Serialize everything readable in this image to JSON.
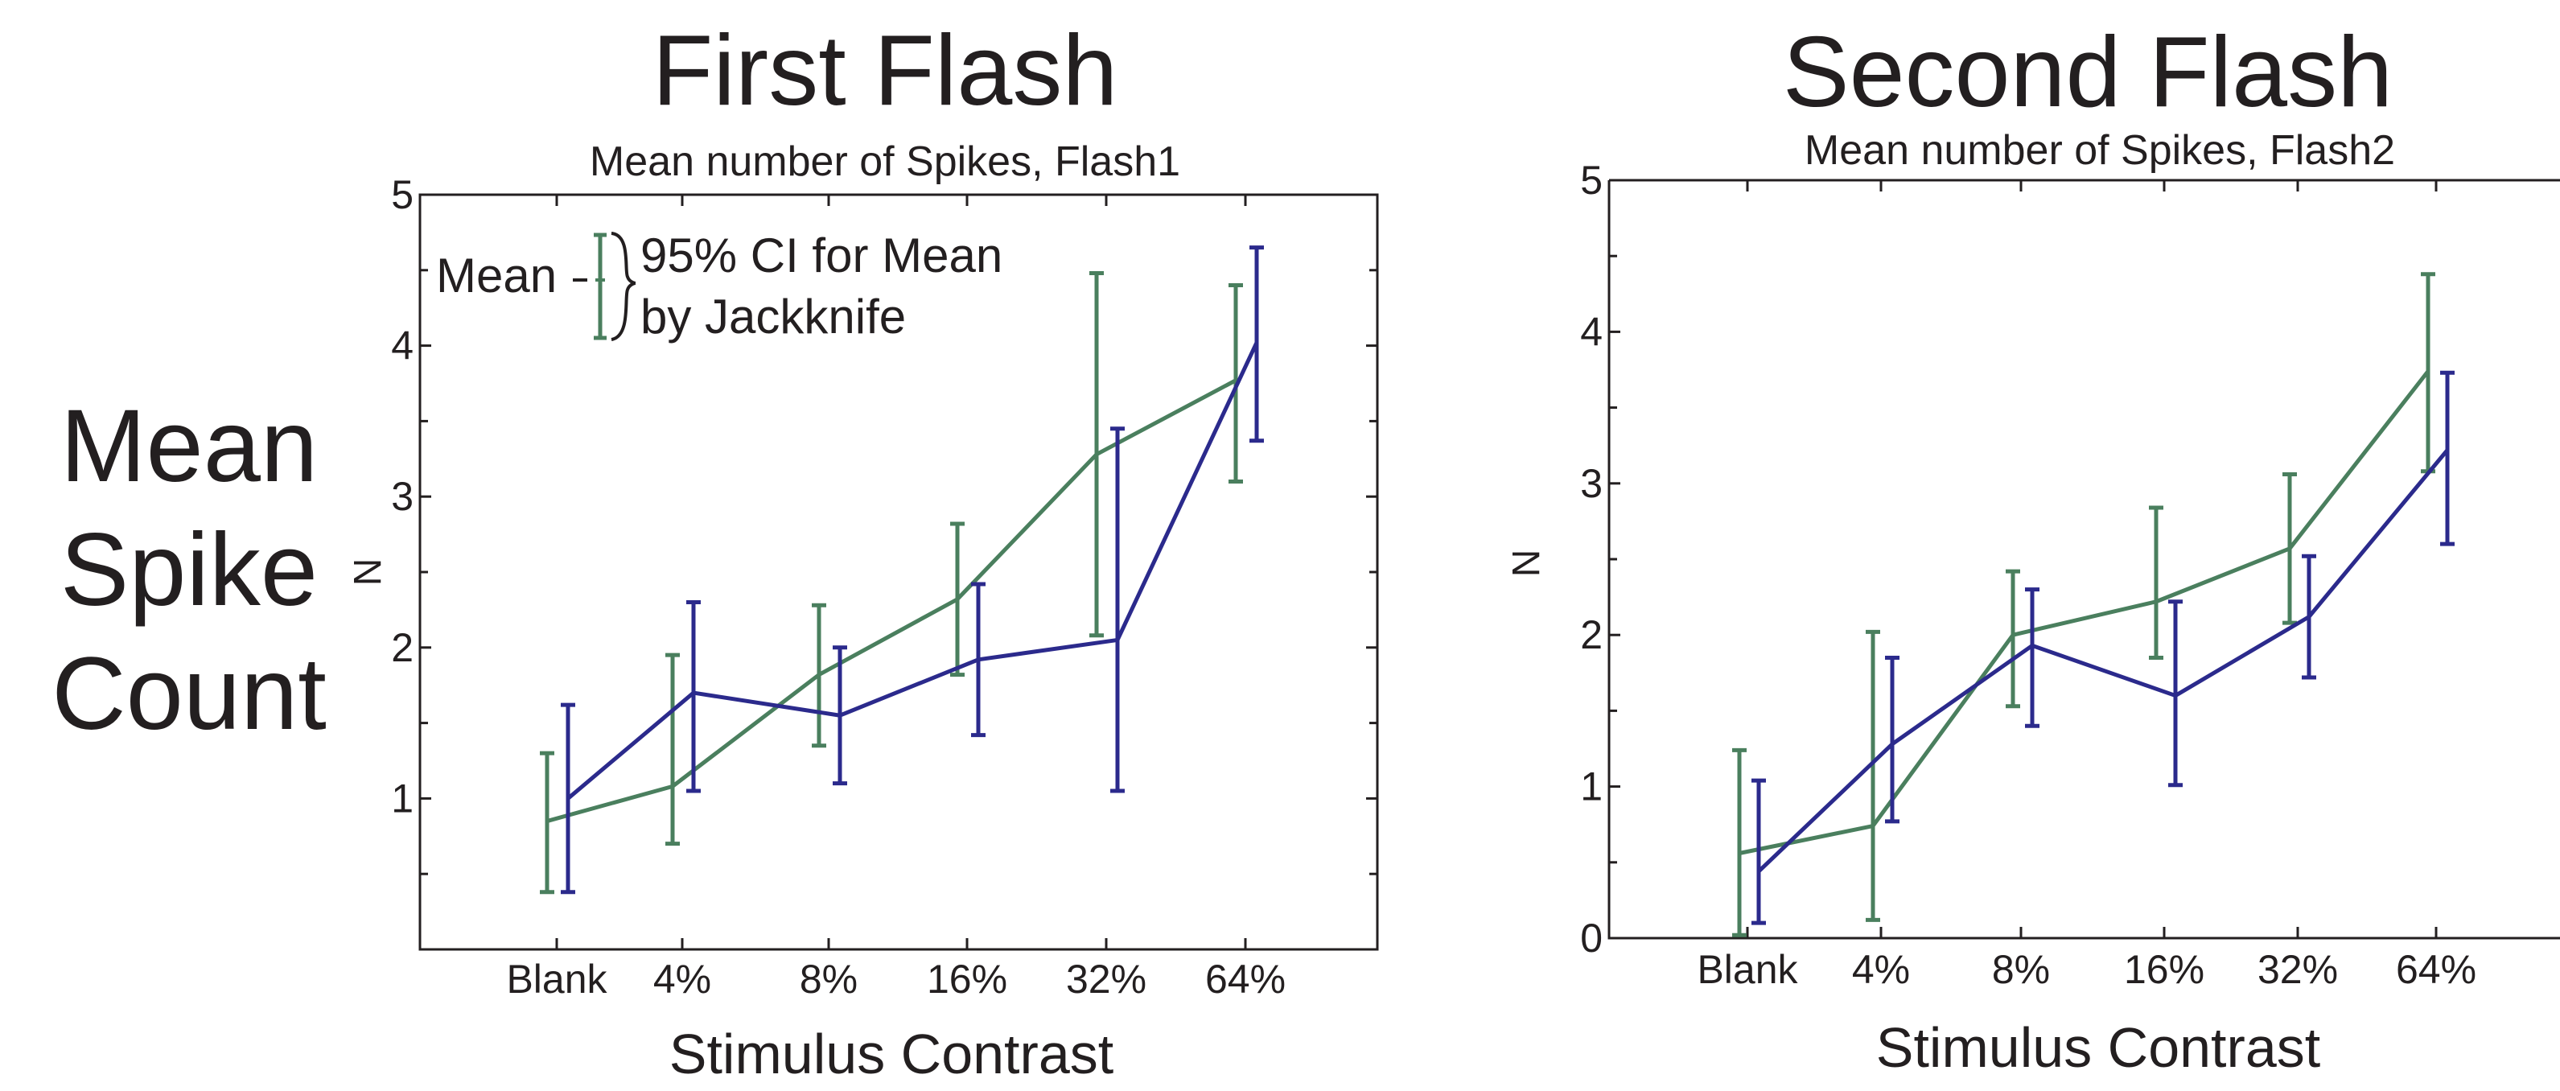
{
  "side_label": [
    "Mean",
    "Spike",
    "Count"
  ],
  "legend": {
    "mean_label": "Mean",
    "ci_line1": "95% CI for Mean",
    "ci_line2": "by Jackknife"
  },
  "colors": {
    "green": "#4a7f5e",
    "blue": "#2b2a8c",
    "axis": "#231f20"
  },
  "chart_data": [
    {
      "type": "line",
      "title": "First Flash",
      "subtitle": "Mean number of Spikes, Flash1",
      "xlabel": "Stimulus Contrast",
      "ylabel": "N",
      "categories": [
        "Blank",
        "4%",
        "8%",
        "16%",
        "32%",
        "64%"
      ],
      "ylim": [
        0,
        5
      ],
      "yticks": [
        1,
        2,
        3,
        4,
        5
      ],
      "error_bars": "95% CI by jackknife",
      "series": [
        {
          "color": "green",
          "values": [
            0.85,
            1.08,
            1.82,
            2.32,
            3.28,
            3.77
          ],
          "ci_low": [
            0.38,
            0.7,
            1.35,
            1.82,
            2.08,
            3.1
          ],
          "ci_high": [
            1.3,
            1.95,
            2.28,
            2.82,
            4.48,
            4.4
          ]
        },
        {
          "color": "blue",
          "values": [
            1.0,
            1.7,
            1.55,
            1.92,
            2.05,
            4.02
          ],
          "ci_low": [
            0.38,
            1.05,
            1.1,
            1.42,
            1.05,
            3.37
          ],
          "ci_high": [
            1.62,
            2.3,
            2.0,
            2.42,
            3.45,
            4.65
          ]
        }
      ]
    },
    {
      "type": "line",
      "title": "Second Flash",
      "subtitle": "Mean number of Spikes, Flash2",
      "xlabel": "Stimulus Contrast",
      "ylabel": "N",
      "categories": [
        "Blank",
        "4%",
        "8%",
        "16%",
        "32%",
        "64%"
      ],
      "ylim": [
        0,
        5
      ],
      "yticks": [
        0,
        1,
        2,
        3,
        4,
        5
      ],
      "error_bars": "95% CI by jackknife",
      "series": [
        {
          "color": "green",
          "values": [
            0.56,
            0.74,
            2.0,
            2.22,
            2.57,
            3.74
          ],
          "ci_low": [
            0.02,
            0.12,
            1.53,
            1.85,
            2.08,
            3.08
          ],
          "ci_high": [
            1.24,
            2.02,
            2.42,
            2.84,
            3.06,
            4.38
          ]
        },
        {
          "color": "blue",
          "values": [
            0.44,
            1.28,
            1.93,
            1.6,
            2.12,
            3.22
          ],
          "ci_low": [
            0.1,
            0.77,
            1.4,
            1.01,
            1.72,
            2.6
          ],
          "ci_high": [
            1.04,
            1.85,
            2.3,
            2.22,
            2.52,
            3.73
          ]
        }
      ]
    }
  ]
}
